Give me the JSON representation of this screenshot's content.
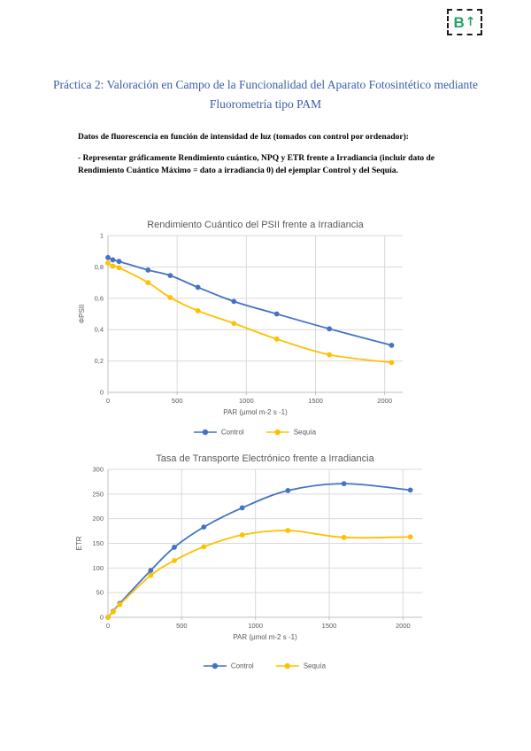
{
  "badge": {
    "letter": "B",
    "arrow": "↑",
    "color": "#21A366"
  },
  "doc": {
    "title": "Práctica 2: Valoración en Campo de la Funcionalidad del Aparato Fotosintético mediante Fluorometría tipo PAM",
    "para1": "Datos de fluorescencia en función de intensidad de luz (tomados con control por ordenador):",
    "para2": "- Representar gráficamente Rendimiento cuántico, NPQ y ETR frente a Irradiancia (incluir dato de Rendimiento Cuántico Máximo = dato a irradiancia 0) del ejemplar Control y del Sequía."
  },
  "colors": {
    "control": "#4472C4",
    "sequia": "#FFC000",
    "chart_text": "#595959",
    "grid": "#D9D9D9",
    "axis": "#BFBFBF",
    "title_text": "#3A5DA8"
  },
  "chart_data": [
    {
      "type": "line",
      "title": "Rendimiento Cuántico del PSII frente a Irradiancia",
      "xlabel": "PAR (μmol m-2 s -1)",
      "ylabel": "ΦPSII",
      "x": [
        0,
        35,
        80,
        290,
        450,
        650,
        910,
        1220,
        1600,
        2050
      ],
      "series": [
        {
          "name": "Control",
          "color": "#4472C4",
          "values": [
            0.86,
            0.845,
            0.835,
            0.78,
            0.745,
            0.67,
            0.58,
            0.5,
            0.405,
            0.3
          ]
        },
        {
          "name": "Sequía",
          "color": "#FFC000",
          "values": [
            0.825,
            0.805,
            0.795,
            0.7,
            0.605,
            0.52,
            0.44,
            0.34,
            0.24,
            0.19
          ]
        }
      ],
      "xlim": [
        0,
        2130
      ],
      "ylim": [
        0,
        1
      ],
      "xticks": [
        0,
        500,
        1000,
        1500,
        2000
      ],
      "xtick_labels": [
        "0",
        "500",
        "1000",
        "1500",
        "2000"
      ],
      "yticks": [
        0,
        0.2,
        0.4,
        0.6,
        0.8,
        1
      ],
      "ytick_labels": [
        "0",
        "0,2",
        "0,4",
        "0,6",
        "0,8",
        "1"
      ],
      "grid": true,
      "legend_position": "bottom"
    },
    {
      "type": "line",
      "title": "Tasa de Transporte Electrónico frente a Irradiancia",
      "xlabel": "PAR (μmol m-2 s -1)",
      "ylabel": "ETR",
      "x": [
        0,
        35,
        80,
        290,
        450,
        650,
        910,
        1220,
        1600,
        2050
      ],
      "series": [
        {
          "name": "Control",
          "color": "#4472C4",
          "values": [
            0,
            12,
            28,
            95,
            142,
            183,
            222,
            257,
            271,
            258
          ]
        },
        {
          "name": "Sequía",
          "color": "#FFC000",
          "values": [
            0,
            11,
            26,
            85,
            115,
            143,
            167,
            176,
            162,
            163
          ]
        }
      ],
      "xlim": [
        0,
        2130
      ],
      "ylim": [
        0,
        300
      ],
      "xticks": [
        0,
        500,
        1000,
        1500,
        2000
      ],
      "xtick_labels": [
        "0",
        "500",
        "1000",
        "1500",
        "2000"
      ],
      "yticks": [
        0,
        50,
        100,
        150,
        200,
        250,
        300
      ],
      "ytick_labels": [
        "0",
        "50",
        "100",
        "150",
        "200",
        "250",
        "300"
      ],
      "grid": true,
      "legend_position": "bottom"
    }
  ]
}
